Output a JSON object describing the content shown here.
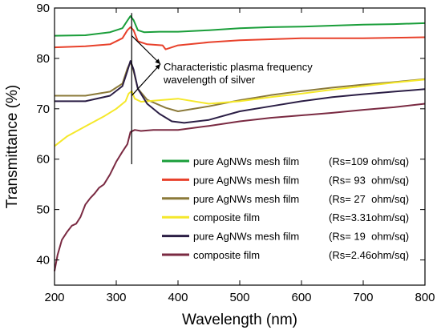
{
  "chart_data": {
    "type": "line",
    "xlabel": "Wavelength (nm)",
    "ylabel": "Transmittance (%)",
    "xlim": [
      200,
      800
    ],
    "ylim": [
      35,
      90
    ],
    "x_ticks": [
      200,
      300,
      400,
      500,
      600,
      700,
      800
    ],
    "y_ticks": [
      40,
      50,
      60,
      70,
      80,
      90
    ],
    "legend_placement": "bottom-right",
    "annotation": {
      "lines": [
        "Characteristic plasma frequency",
        "wavelength of silver"
      ],
      "x": 325
    },
    "series": [
      {
        "name": "pure AgNWs mesh film",
        "rs": "(Rs=109 ohm/sq)",
        "color": "#1a9e3a",
        "points": [
          [
            200,
            84.5
          ],
          [
            250,
            84.6
          ],
          [
            290,
            85.2
          ],
          [
            310,
            86.0
          ],
          [
            318,
            87.5
          ],
          [
            323,
            88.4
          ],
          [
            328,
            87.6
          ],
          [
            335,
            85.6
          ],
          [
            345,
            85.2
          ],
          [
            370,
            85.3
          ],
          [
            400,
            85.3
          ],
          [
            450,
            85.6
          ],
          [
            500,
            86.0
          ],
          [
            550,
            86.2
          ],
          [
            600,
            86.3
          ],
          [
            650,
            86.5
          ],
          [
            700,
            86.7
          ],
          [
            750,
            86.8
          ],
          [
            800,
            87.0
          ]
        ]
      },
      {
        "name": "pure AgNWs mesh film",
        "rs": "(Rs= 93  ohm/sq)",
        "color": "#e8412b",
        "points": [
          [
            200,
            82.2
          ],
          [
            250,
            82.4
          ],
          [
            290,
            82.8
          ],
          [
            310,
            84.0
          ],
          [
            318,
            85.6
          ],
          [
            323,
            86.2
          ],
          [
            328,
            85.6
          ],
          [
            335,
            83.4
          ],
          [
            350,
            82.8
          ],
          [
            375,
            82.6
          ],
          [
            380,
            81.8
          ],
          [
            400,
            82.6
          ],
          [
            450,
            83.2
          ],
          [
            500,
            83.6
          ],
          [
            550,
            83.8
          ],
          [
            600,
            84.0
          ],
          [
            650,
            84.0
          ],
          [
            700,
            84.0
          ],
          [
            750,
            84.1
          ],
          [
            800,
            84.2
          ]
        ]
      },
      {
        "name": "pure AgNWs mesh film",
        "rs": "(Rs= 27  ohm/sq)",
        "color": "#8b7a3a",
        "points": [
          [
            200,
            72.6
          ],
          [
            250,
            72.6
          ],
          [
            290,
            73.4
          ],
          [
            310,
            75.0
          ],
          [
            318,
            78.0
          ],
          [
            323,
            79.3
          ],
          [
            328,
            77.5
          ],
          [
            335,
            74.0
          ],
          [
            350,
            71.8
          ],
          [
            380,
            70.2
          ],
          [
            400,
            69.5
          ],
          [
            450,
            70.5
          ],
          [
            500,
            71.7
          ],
          [
            550,
            72.7
          ],
          [
            600,
            73.5
          ],
          [
            650,
            74.2
          ],
          [
            700,
            74.8
          ],
          [
            750,
            75.3
          ],
          [
            800,
            75.9
          ]
        ]
      },
      {
        "name": "composite film",
        "rs": "(Rs=3.31ohm/sq)",
        "color": "#f5e82a",
        "points": [
          [
            200,
            62.6
          ],
          [
            220,
            64.5
          ],
          [
            250,
            66.5
          ],
          [
            280,
            68.5
          ],
          [
            300,
            70.0
          ],
          [
            315,
            71.5
          ],
          [
            320,
            73.0
          ],
          [
            325,
            73.5
          ],
          [
            330,
            72.0
          ],
          [
            340,
            71.4
          ],
          [
            360,
            71.6
          ],
          [
            380,
            71.8
          ],
          [
            400,
            72.0
          ],
          [
            450,
            71.0
          ],
          [
            500,
            71.5
          ],
          [
            550,
            72.3
          ],
          [
            600,
            73.0
          ],
          [
            650,
            73.8
          ],
          [
            700,
            74.5
          ],
          [
            750,
            75.2
          ],
          [
            800,
            75.8
          ]
        ]
      },
      {
        "name": "pure AgNWs mesh film",
        "rs": "(Rs= 19  ohm/sq)",
        "color": "#2b1e45",
        "points": [
          [
            200,
            71.5
          ],
          [
            250,
            71.5
          ],
          [
            290,
            72.6
          ],
          [
            310,
            74.5
          ],
          [
            318,
            77.5
          ],
          [
            323,
            79.5
          ],
          [
            328,
            77.8
          ],
          [
            335,
            74.0
          ],
          [
            350,
            71.0
          ],
          [
            370,
            69.0
          ],
          [
            390,
            67.5
          ],
          [
            410,
            67.2
          ],
          [
            450,
            67.8
          ],
          [
            500,
            69.5
          ],
          [
            550,
            70.5
          ],
          [
            600,
            71.5
          ],
          [
            650,
            72.3
          ],
          [
            700,
            72.9
          ],
          [
            750,
            73.4
          ],
          [
            800,
            73.9
          ]
        ]
      },
      {
        "name": "composite film",
        "rs": "(Rs=2.46ohm/sq)",
        "color": "#7a2a42",
        "points": [
          [
            200,
            37.8
          ],
          [
            205,
            41.0
          ],
          [
            212,
            44.0
          ],
          [
            220,
            45.5
          ],
          [
            228,
            46.8
          ],
          [
            235,
            47.2
          ],
          [
            242,
            48.5
          ],
          [
            250,
            51.0
          ],
          [
            258,
            52.3
          ],
          [
            265,
            53.2
          ],
          [
            272,
            54.3
          ],
          [
            280,
            55.0
          ],
          [
            290,
            57.0
          ],
          [
            300,
            59.5
          ],
          [
            310,
            61.5
          ],
          [
            318,
            63.0
          ],
          [
            323,
            65.4
          ],
          [
            330,
            65.8
          ],
          [
            340,
            65.6
          ],
          [
            360,
            65.8
          ],
          [
            400,
            65.8
          ],
          [
            450,
            66.6
          ],
          [
            500,
            67.5
          ],
          [
            550,
            68.2
          ],
          [
            600,
            68.7
          ],
          [
            650,
            69.2
          ],
          [
            700,
            69.8
          ],
          [
            750,
            70.3
          ],
          [
            800,
            71.0
          ]
        ]
      }
    ]
  }
}
